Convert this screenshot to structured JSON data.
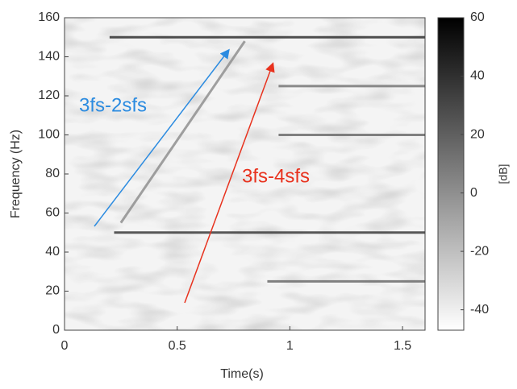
{
  "chart_data": {
    "type": "spectrogram",
    "x_label": "Time(s)",
    "y_label": "Frequency (Hz)",
    "colorbar_label": "[dB]",
    "xlim": [
      0,
      1.6
    ],
    "xticks": [
      0,
      0.5,
      1,
      1.5
    ],
    "ylim": [
      0,
      160
    ],
    "yticks": [
      0,
      20,
      40,
      60,
      80,
      100,
      120,
      140,
      160
    ],
    "clim": [
      -47,
      60
    ],
    "cticks": [
      60,
      40,
      20,
      0,
      -20,
      -40
    ],
    "tones": [
      {
        "x": [
          0.2,
          1.6
        ],
        "y": [
          150,
          150
        ],
        "level": 40
      },
      {
        "x": [
          0.22,
          1.6
        ],
        "y": [
          50,
          50
        ],
        "level": 35
      },
      {
        "x": [
          0.95,
          1.6
        ],
        "y": [
          100,
          100
        ],
        "level": 15
      },
      {
        "x": [
          0.95,
          1.6
        ],
        "y": [
          125,
          125
        ],
        "level": 10
      },
      {
        "x": [
          0.9,
          1.6
        ],
        "y": [
          25,
          25
        ],
        "level": 15
      },
      {
        "x": [
          0.25,
          0.8
        ],
        "y": [
          55,
          148
        ],
        "level": 0
      }
    ],
    "annotations": [
      {
        "text": "3fs-2sfs",
        "color": "#2b8be0"
      },
      {
        "text": "3fs-4sfs",
        "color": "#e8321e"
      }
    ]
  }
}
